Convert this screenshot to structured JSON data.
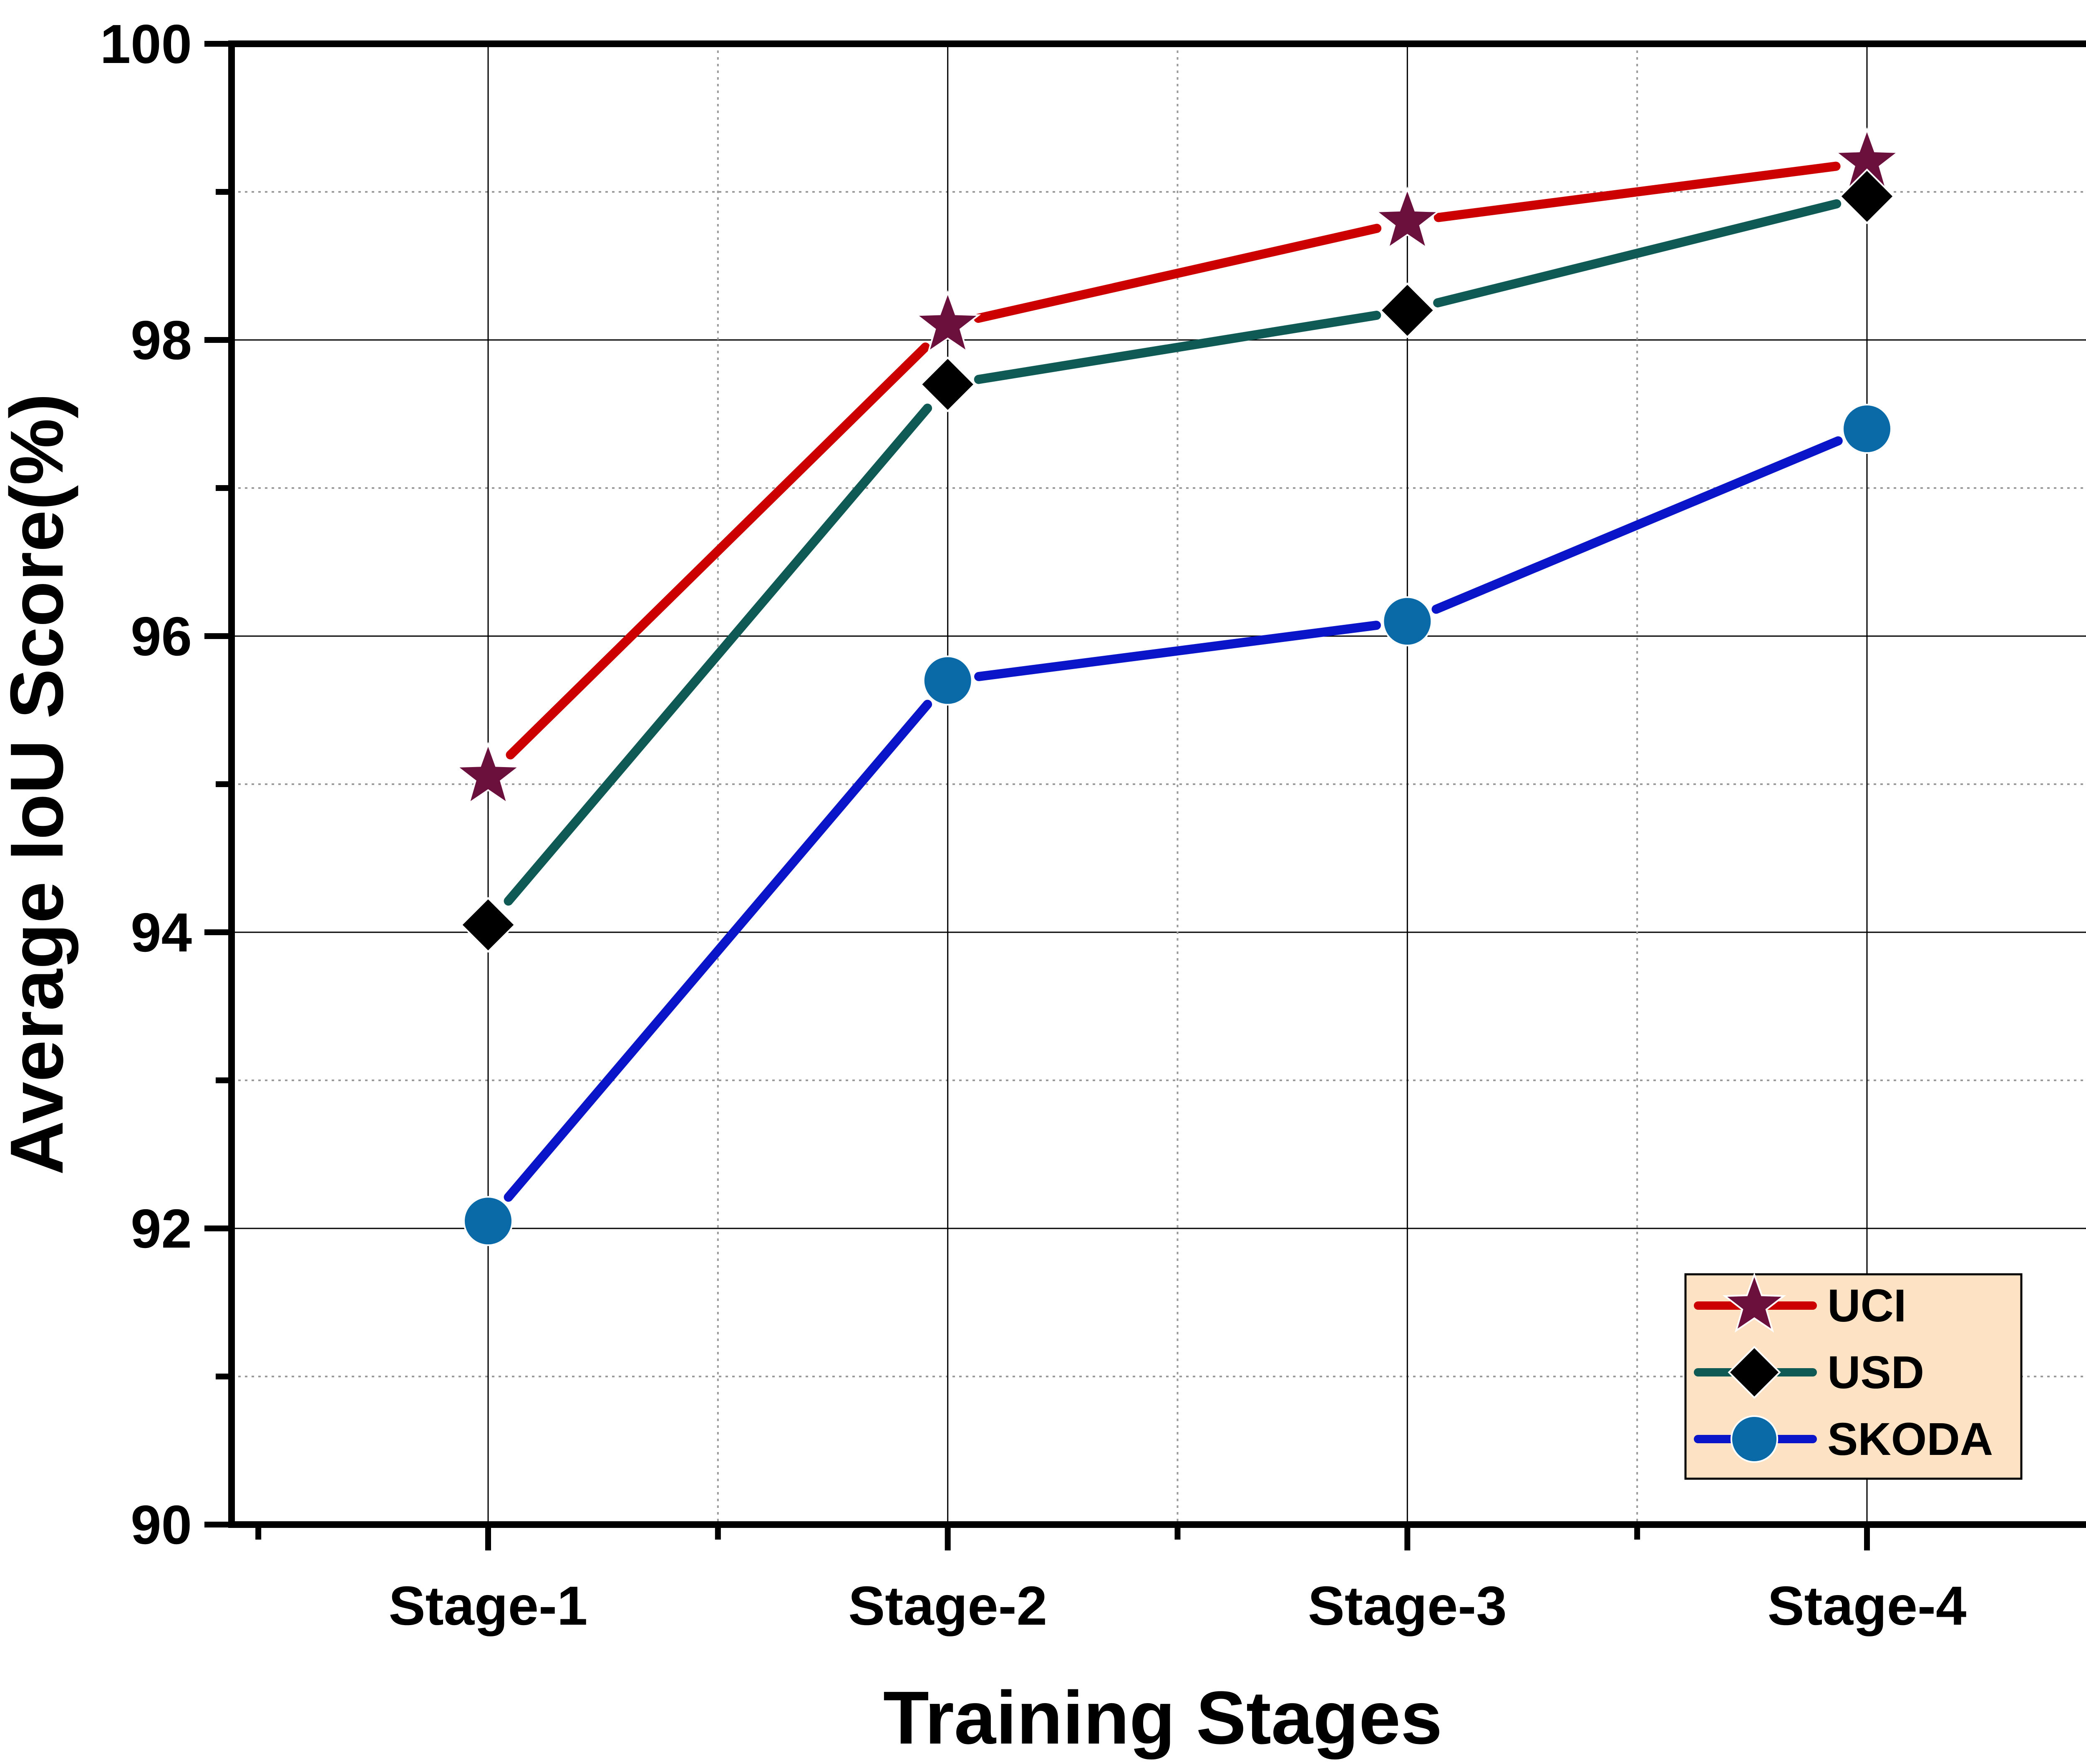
{
  "chart_data": {
    "type": "line",
    "title": "",
    "xlabel": "Training Stages",
    "ylabel": "Average IoU Score(%)",
    "categories": [
      "Stage-1",
      "Stage-2",
      "Stage-3",
      "Stage-4"
    ],
    "ylim": [
      90,
      100
    ],
    "yticks": [
      90,
      92,
      94,
      96,
      98,
      100
    ],
    "yticks_minor": [
      91,
      93,
      95,
      97,
      99
    ],
    "grid": true,
    "legend_position": "bottom-right",
    "series": [
      {
        "name": "UCI",
        "values": [
          95.05,
          98.1,
          98.8,
          99.2
        ],
        "line_color": "#cc0000",
        "marker": "star",
        "marker_color": "#6b0f3c"
      },
      {
        "name": "USD",
        "values": [
          94.05,
          97.7,
          98.2,
          98.97
        ],
        "line_color": "#0f5a55",
        "marker": "diamond",
        "marker_color": "#000000"
      },
      {
        "name": "SKODA",
        "values": [
          92.05,
          95.7,
          96.1,
          97.4
        ],
        "line_color": "#0a14c8",
        "marker": "circle",
        "marker_color": "#0a6aa8"
      }
    ],
    "legend_background": "#fde3c3"
  }
}
